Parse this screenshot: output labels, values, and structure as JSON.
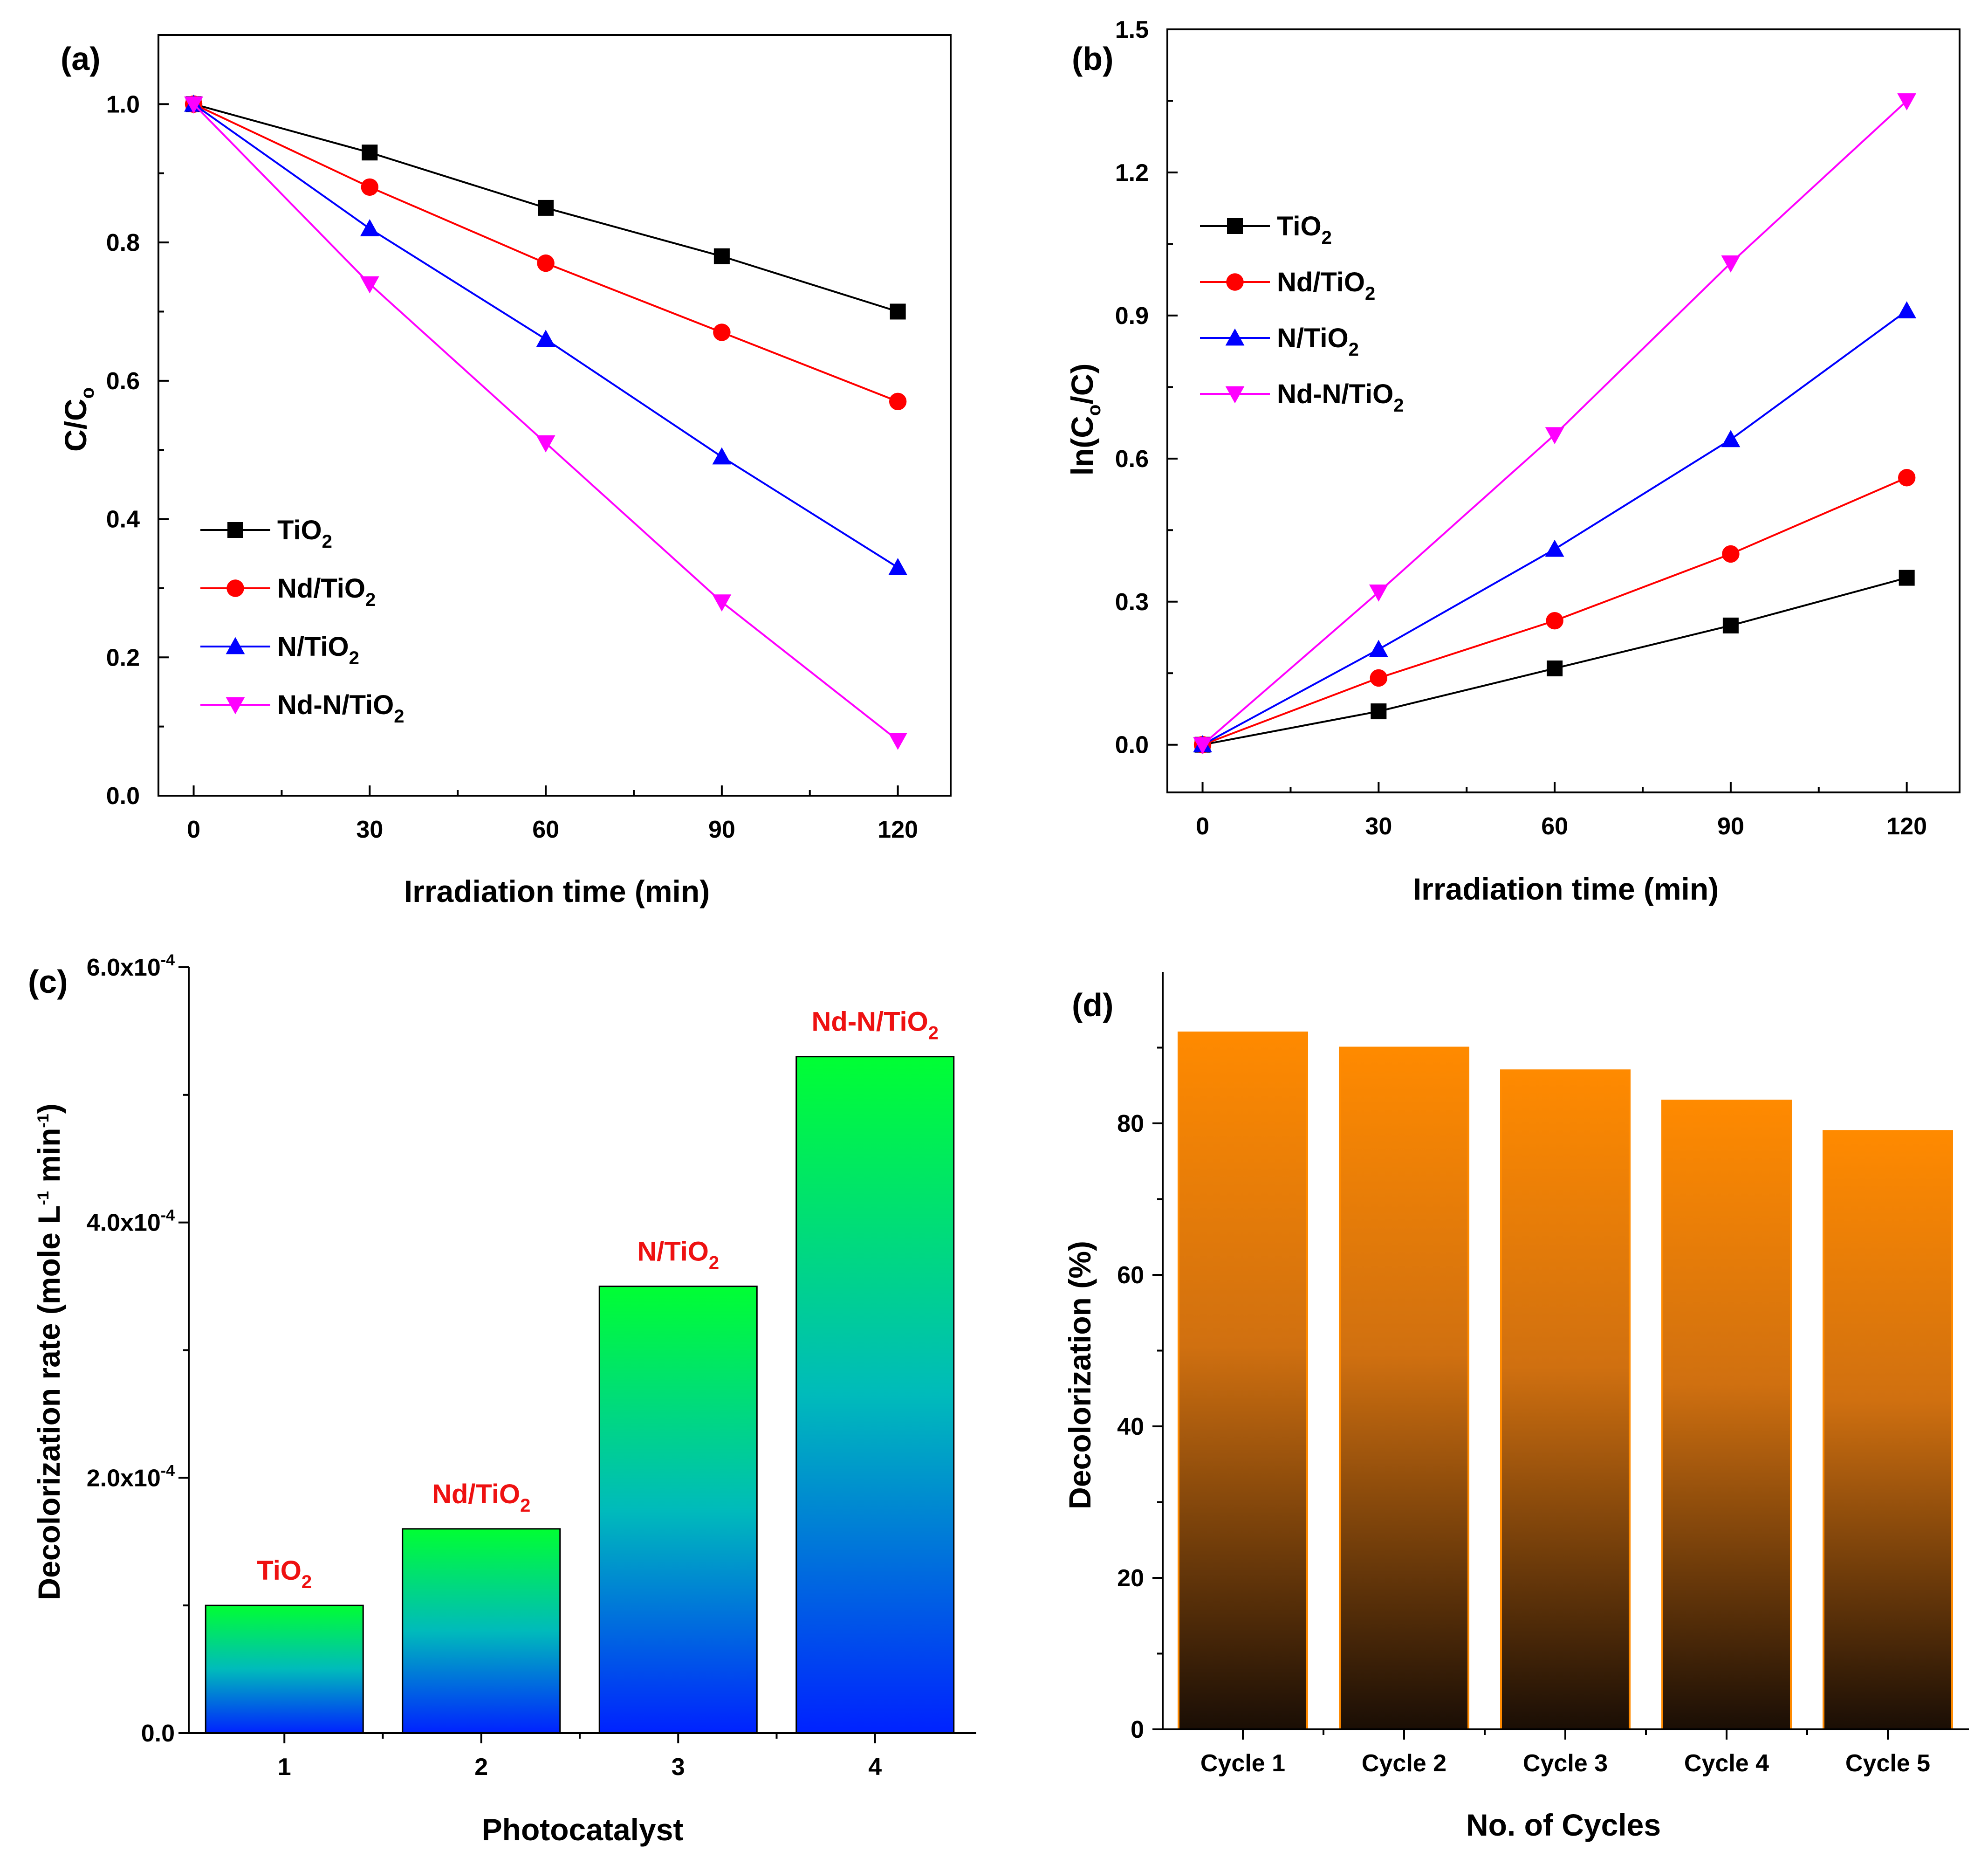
{
  "chart_data": [
    {
      "panel": "(a)",
      "type": "line",
      "x": [
        0,
        30,
        60,
        90,
        120
      ],
      "xlabel": "Irradiation time (min)",
      "ylabel": "C/C",
      "ylabel_sub": "o",
      "xlim": [
        -6,
        129
      ],
      "ylim": [
        0,
        1.1
      ],
      "xticks": [
        0,
        30,
        60,
        90,
        120
      ],
      "yticks": [
        0.0,
        0.2,
        0.4,
        0.6,
        0.8,
        1.0
      ],
      "ytick_labels": [
        "0.0",
        "0.2",
        "0.4",
        "0.6",
        "0.8",
        "1.0"
      ],
      "legend_position": "lower-left",
      "series": [
        {
          "name": "TiO",
          "sub": "2",
          "color": "#000000",
          "marker": "square",
          "values": [
            1.0,
            0.93,
            0.85,
            0.78,
            0.7
          ]
        },
        {
          "name": "Nd/TiO",
          "sub": "2",
          "color": "#ff0000",
          "marker": "circle",
          "values": [
            1.0,
            0.88,
            0.77,
            0.67,
            0.57
          ]
        },
        {
          "name": "N/TiO",
          "sub": "2",
          "color": "#0000ff",
          "marker": "triangle-up",
          "values": [
            1.0,
            0.82,
            0.66,
            0.49,
            0.33
          ]
        },
        {
          "name": "Nd-N/TiO",
          "sub": "2",
          "color": "#ff00ff",
          "marker": "triangle-down",
          "values": [
            1.0,
            0.74,
            0.51,
            0.28,
            0.08
          ]
        }
      ]
    },
    {
      "panel": "(b)",
      "type": "line",
      "x": [
        0,
        30,
        60,
        90,
        120
      ],
      "xlabel": "Irradiation time (min)",
      "ylabel": "ln(C",
      "ylabel_sub": "o",
      "ylabel_end": "/C)",
      "xlim": [
        -6,
        129
      ],
      "ylim": [
        -0.1,
        1.5
      ],
      "xticks": [
        0,
        30,
        60,
        90,
        120
      ],
      "yticks": [
        0.0,
        0.3,
        0.6,
        0.9,
        1.2,
        1.5
      ],
      "ytick_labels": [
        "0.0",
        "0.3",
        "0.6",
        "0.9",
        "1.2",
        "1.5"
      ],
      "legend_position": "upper-left",
      "series": [
        {
          "name": "TiO",
          "sub": "2",
          "color": "#000000",
          "marker": "square",
          "values": [
            0.0,
            0.07,
            0.16,
            0.25,
            0.35
          ]
        },
        {
          "name": "Nd/TiO",
          "sub": "2",
          "color": "#ff0000",
          "marker": "circle",
          "values": [
            0.0,
            0.14,
            0.26,
            0.4,
            0.56
          ]
        },
        {
          "name": "N/TiO",
          "sub": "2",
          "color": "#0000ff",
          "marker": "triangle-up",
          "values": [
            0.0,
            0.2,
            0.41,
            0.64,
            0.91
          ]
        },
        {
          "name": "Nd-N/TiO",
          "sub": "2",
          "color": "#ff00ff",
          "marker": "triangle-down",
          "values": [
            0.0,
            0.32,
            0.65,
            1.01,
            1.35
          ]
        }
      ]
    },
    {
      "panel": "(c)",
      "type": "bar",
      "categories": [
        "1",
        "2",
        "3",
        "4"
      ],
      "values": [
        0.0001,
        0.00016,
        0.00035,
        0.00053
      ],
      "bar_labels": [
        {
          "text": "TiO",
          "sub": "2"
        },
        {
          "text": "Nd/TiO",
          "sub": "2"
        },
        {
          "text": "N/TiO",
          "sub": "2"
        },
        {
          "text": "Nd-N/TiO",
          "sub": "2"
        }
      ],
      "xlabel": "Photocatalyst",
      "ylabel": "Decolorization rate (mole L",
      "ylabel_sup1": "-1",
      "ylabel_mid": " min",
      "ylabel_sup2": "-1",
      "ylabel_end": ")",
      "ylim": [
        0,
        0.0006
      ],
      "yticks": [
        0.0,
        0.0002,
        0.0004,
        0.0006
      ],
      "ytick_labels": [
        {
          "text": "0.0",
          "sup": ""
        },
        {
          "text": "2.0x10",
          "sup": "-4"
        },
        {
          "text": "4.0x10",
          "sup": "-4"
        },
        {
          "text": "6.0x10",
          "sup": "-4"
        }
      ],
      "gradient": {
        "top": "#00ff33",
        "middle": "#00bbbb",
        "bottom": "#0022ff"
      }
    },
    {
      "panel": "(d)",
      "type": "bar",
      "categories": [
        "Cycle 1",
        "Cycle 2",
        "Cycle 3",
        "Cycle 4",
        "Cycle 5"
      ],
      "values": [
        92,
        90,
        87,
        83,
        79
      ],
      "xlabel": "No. of Cycles",
      "ylabel": "Decolorization (%)",
      "ylim": [
        0,
        100
      ],
      "yticks": [
        0,
        20,
        40,
        60,
        80
      ],
      "ytick_labels": [
        "0",
        "20",
        "40",
        "60",
        "80"
      ],
      "gradient": {
        "top": "#ff8a00",
        "middle": "#d07010",
        "bottom": "#1a0e05"
      }
    }
  ]
}
